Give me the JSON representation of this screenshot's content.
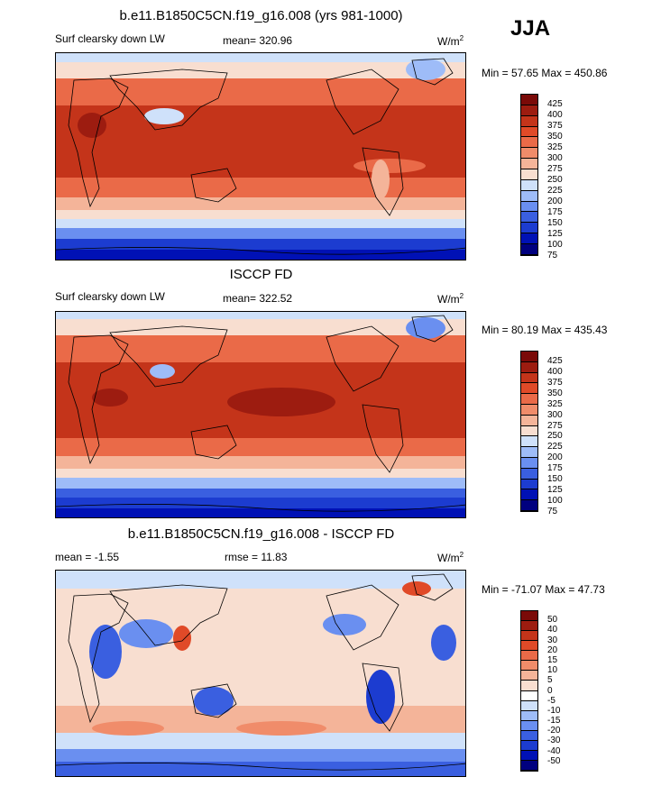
{
  "season": "JJA",
  "colors": {
    "absolute": [
      "#00007f",
      "#0011b5",
      "#1c3cd0",
      "#3a5fe0",
      "#6a8ff0",
      "#9ebcf8",
      "#cfe1fa",
      "#f8ded0",
      "#f4b499",
      "#f08c6a",
      "#ea6a48",
      "#e04a28",
      "#c4341a",
      "#9d1c10",
      "#7a0a08"
    ],
    "difference": [
      "#00007f",
      "#0011b5",
      "#1c3cd0",
      "#3a5fe0",
      "#6a8ff0",
      "#9ebcf8",
      "#cfe1fa",
      "#ffffff",
      "#f8ded0",
      "#f4b499",
      "#f08c6a",
      "#ea6a48",
      "#e04a28",
      "#c4341a",
      "#9d1c10",
      "#7a0a08"
    ]
  },
  "chart_data": [
    {
      "type": "heatmap",
      "title": "b.e11.B1850C5CN.f19_g16.008 (yrs 981-1000)",
      "variable": "Surf clearsky down LW",
      "mean_label": "mean= 320.96",
      "units": "W/m",
      "units_sup": "2",
      "minmax": "Min =  57.65 Max = 450.86",
      "mean": 320.96,
      "min": 57.65,
      "max": 450.86,
      "levels": [
        "425",
        "400",
        "375",
        "350",
        "325",
        "300",
        "275",
        "250",
        "225",
        "200",
        "175",
        "150",
        "125",
        "100",
        "75"
      ]
    },
    {
      "type": "heatmap",
      "title": "ISCCP FD",
      "variable": "Surf clearsky down LW",
      "mean_label": "mean= 322.52",
      "units": "W/m",
      "units_sup": "2",
      "minmax": "Min =  80.19 Max = 435.43",
      "mean": 322.52,
      "min": 80.19,
      "max": 435.43,
      "levels": [
        "425",
        "400",
        "375",
        "350",
        "325",
        "300",
        "275",
        "250",
        "225",
        "200",
        "175",
        "150",
        "125",
        "100",
        "75"
      ]
    },
    {
      "type": "heatmap",
      "title": "b.e11.B1850C5CN.f19_g16.008 - ISCCP FD",
      "mean_label": "mean =  -1.55",
      "rmse_label": "rmse =  11.83",
      "units": "W/m",
      "units_sup": "2",
      "minmax": "Min = -71.07 Max =  47.73",
      "mean": -1.55,
      "rmse": 11.83,
      "min": -71.07,
      "max": 47.73,
      "levels": [
        "50",
        "40",
        "30",
        "20",
        "15",
        "10",
        "5",
        "0",
        "-5",
        "-10",
        "-15",
        "-20",
        "-30",
        "-40",
        "-50"
      ]
    }
  ]
}
